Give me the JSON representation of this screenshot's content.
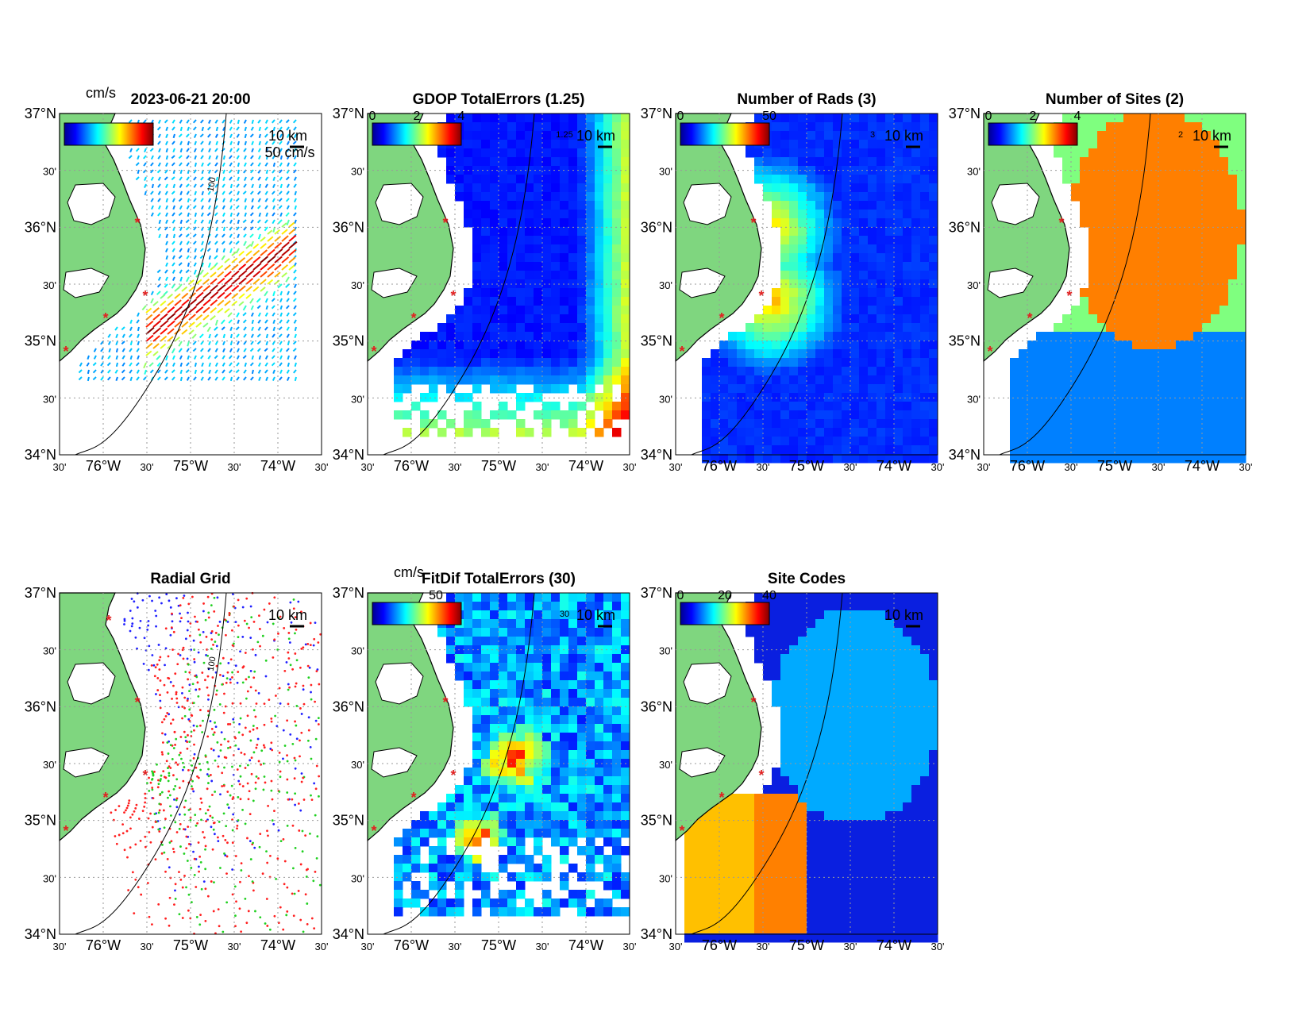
{
  "figure": {
    "timestamp": "2023-06-21 20:00",
    "map": {
      "lat_ticks": [
        "37°N",
        "30'",
        "36°N",
        "30'",
        "35°N",
        "30'",
        "34°N"
      ],
      "lon_ticks": [
        "30'",
        "76°W",
        "30'",
        "75°W",
        "30'",
        "74°W",
        "30'"
      ],
      "scale_bar": "10 km",
      "vector_scale": "50 cm/s",
      "contour_100": "100"
    },
    "colors": {
      "land": "#7fd67f",
      "sites": "#e02020",
      "ocean_blue": "#1a3fd6"
    },
    "panels": [
      {
        "id": "total-vectors",
        "title": "",
        "colorbar_unit": "cm/s",
        "colorbar_ticks": []
      },
      {
        "id": "gdop",
        "title": "GDOP TotalErrors (1.25)",
        "colorbar_unit": "",
        "colorbar_ticks": [
          "0",
          "2",
          "4"
        ],
        "contour_label": "1.25"
      },
      {
        "id": "num-rads",
        "title": "Number of Rads (3)",
        "colorbar_unit": "",
        "colorbar_ticks": [
          "0",
          "50"
        ],
        "contour_label": "3"
      },
      {
        "id": "num-sites",
        "title": "Number of Sites (2)",
        "colorbar_unit": "",
        "colorbar_ticks": [
          "0",
          "2",
          "4"
        ],
        "contour_label": "2"
      },
      {
        "id": "radial-grid",
        "title": "Radial Grid",
        "colorbar_unit": "",
        "colorbar_ticks": []
      },
      {
        "id": "fitdif",
        "title": "FitDif TotalErrors (30)",
        "colorbar_unit": "cm/s",
        "colorbar_ticks": [
          "50"
        ],
        "contour_label": "30"
      },
      {
        "id": "site-codes",
        "title": "Site Codes",
        "colorbar_unit": "",
        "colorbar_ticks": [
          "0",
          "20",
          "40"
        ]
      }
    ]
  }
}
